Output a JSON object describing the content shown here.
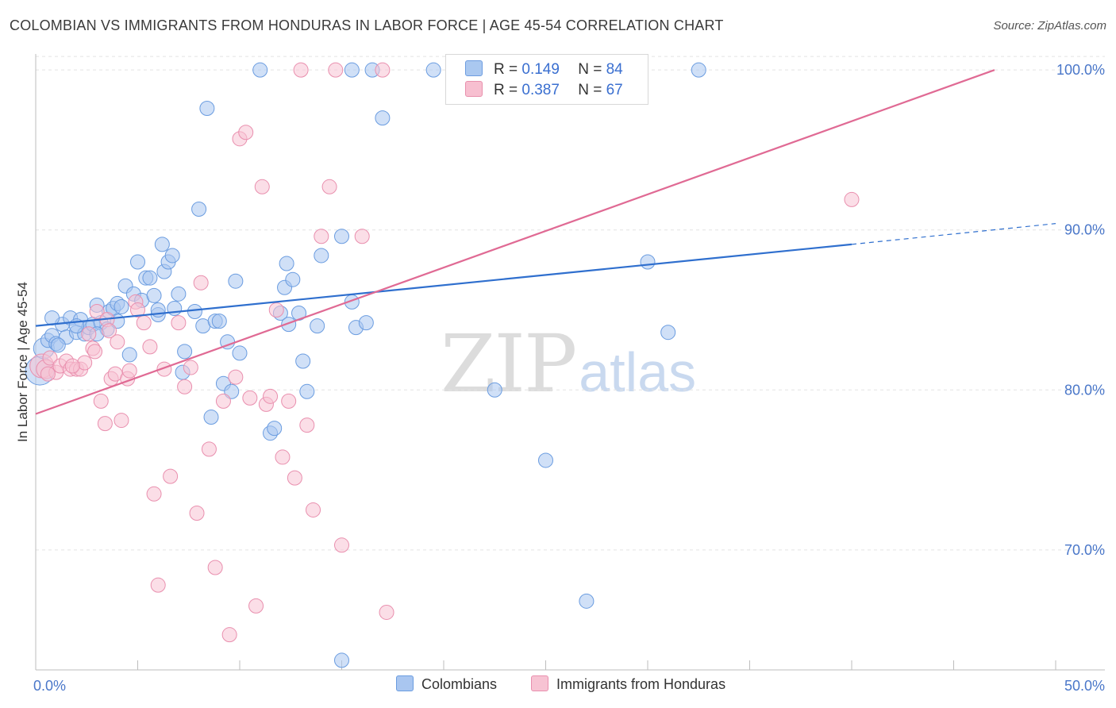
{
  "title": "COLOMBIAN VS IMMIGRANTS FROM HONDURAS IN LABOR FORCE | AGE 45-54 CORRELATION CHART",
  "source": "Source: ZipAtlas.com",
  "watermark": {
    "zip": "ZIP",
    "atlas": "atlas"
  },
  "legend": {
    "r_label": "R =",
    "n_label": "N =",
    "rows": [
      {
        "r": "0.149",
        "n": "84",
        "color": "#aac8f0",
        "border": "#6d9de0"
      },
      {
        "r": "0.387",
        "n": "67",
        "color": "#f7bfd0",
        "border": "#e890ad"
      }
    ]
  },
  "bottom_legend": [
    "Colombians",
    "Immigrants from Honduras"
  ],
  "colors": {
    "blue_fill": "#a9c6f0",
    "blue_stroke": "#6a9ce0",
    "blue_line": "#2f6fce",
    "pink_fill": "#f7c3d3",
    "pink_stroke": "#e98fae",
    "pink_line": "#e06a94"
  },
  "chart_data": {
    "type": "scatter",
    "ylabel": "In Labor Force | Age 45-54",
    "xlabel": "",
    "xlim": [
      0,
      50
    ],
    "ylim": [
      62.5,
      101
    ],
    "x_tick_labels": [
      "0.0%",
      "50.0%"
    ],
    "y_ticks": [
      70,
      80,
      90,
      100
    ],
    "y_tick_labels": [
      "70.0%",
      "80.0%",
      "90.0%",
      "100.0%"
    ],
    "grid": true,
    "series": [
      {
        "name": "Colombians",
        "trend": {
          "x0": 0,
          "y0": 84.0,
          "x1": 40,
          "y1": 89.1,
          "dash_x1": 50,
          "dash_y1": 90.4
        },
        "points": [
          [
            0.2,
            81.2
          ],
          [
            0.4,
            82.6
          ],
          [
            0.6,
            83.1
          ],
          [
            0.8,
            83.4
          ],
          [
            1.0,
            82.9
          ],
          [
            1.3,
            84.1
          ],
          [
            1.5,
            83.3
          ],
          [
            1.7,
            84.5
          ],
          [
            2.0,
            83.6
          ],
          [
            2.2,
            84.4
          ],
          [
            2.4,
            83.5
          ],
          [
            2.6,
            83.9
          ],
          [
            2.8,
            84.1
          ],
          [
            3.0,
            85.3
          ],
          [
            3.2,
            84.2
          ],
          [
            3.5,
            83.8
          ],
          [
            3.6,
            84.9
          ],
          [
            3.8,
            85.1
          ],
          [
            4.0,
            85.4
          ],
          [
            4.2,
            85.2
          ],
          [
            4.4,
            86.5
          ],
          [
            4.6,
            82.2
          ],
          [
            4.8,
            86.0
          ],
          [
            5.0,
            88.0
          ],
          [
            5.2,
            85.6
          ],
          [
            5.4,
            87.0
          ],
          [
            5.6,
            87.0
          ],
          [
            5.8,
            85.9
          ],
          [
            6.0,
            84.7
          ],
          [
            6.2,
            89.1
          ],
          [
            6.3,
            87.4
          ],
          [
            6.5,
            88.0
          ],
          [
            6.7,
            88.4
          ],
          [
            6.8,
            85.1
          ],
          [
            7.0,
            86.0
          ],
          [
            7.2,
            81.1
          ],
          [
            7.3,
            82.4
          ],
          [
            7.8,
            84.9
          ],
          [
            8.0,
            91.3
          ],
          [
            8.2,
            84.0
          ],
          [
            8.4,
            97.6
          ],
          [
            8.6,
            78.3
          ],
          [
            8.8,
            84.3
          ],
          [
            9.0,
            84.3
          ],
          [
            9.2,
            80.4
          ],
          [
            9.4,
            83.0
          ],
          [
            9.6,
            79.9
          ],
          [
            9.8,
            86.8
          ],
          [
            10.0,
            82.3
          ],
          [
            11.0,
            100.0
          ],
          [
            11.5,
            77.3
          ],
          [
            11.7,
            77.6
          ],
          [
            12.0,
            84.8
          ],
          [
            12.2,
            86.4
          ],
          [
            12.3,
            87.9
          ],
          [
            12.4,
            84.1
          ],
          [
            12.6,
            86.9
          ],
          [
            12.9,
            84.8
          ],
          [
            13.1,
            81.8
          ],
          [
            13.3,
            79.9
          ],
          [
            13.8,
            84.0
          ],
          [
            14.0,
            88.4
          ],
          [
            15.0,
            89.6
          ],
          [
            15.5,
            100.0
          ],
          [
            15.5,
            85.5
          ],
          [
            15.7,
            83.9
          ],
          [
            16.2,
            84.2
          ],
          [
            16.5,
            100.0
          ],
          [
            17.0,
            97.0
          ],
          [
            19.5,
            100.0
          ],
          [
            22.0,
            100.0
          ],
          [
            22.5,
            80.0
          ],
          [
            25.0,
            75.6
          ],
          [
            27.0,
            66.8
          ],
          [
            30.0,
            88.0
          ],
          [
            31.0,
            83.6
          ],
          [
            32.5,
            100.0
          ],
          [
            15.0,
            63.1
          ],
          [
            0.8,
            84.5
          ],
          [
            2.0,
            84.0
          ],
          [
            4.0,
            84.3
          ],
          [
            6.0,
            85.0
          ],
          [
            3.0,
            83.5
          ],
          [
            1.1,
            82.8
          ]
        ]
      },
      {
        "name": "Immigrants from Honduras",
        "trend": {
          "x0": 0,
          "y0": 78.5,
          "x1": 47,
          "y1": 100.0
        },
        "points": [
          [
            0.3,
            81.5
          ],
          [
            0.5,
            81.3
          ],
          [
            0.7,
            82.0
          ],
          [
            1.0,
            81.1
          ],
          [
            1.2,
            81.5
          ],
          [
            1.5,
            81.8
          ],
          [
            1.7,
            81.3
          ],
          [
            2.0,
            81.3
          ],
          [
            2.2,
            81.3
          ],
          [
            2.4,
            81.7
          ],
          [
            2.6,
            83.5
          ],
          [
            2.8,
            82.6
          ],
          [
            3.0,
            84.9
          ],
          [
            3.2,
            79.3
          ],
          [
            3.4,
            77.9
          ],
          [
            3.5,
            84.4
          ],
          [
            3.7,
            80.7
          ],
          [
            3.9,
            81.0
          ],
          [
            4.0,
            83.0
          ],
          [
            4.2,
            78.1
          ],
          [
            4.5,
            80.7
          ],
          [
            4.6,
            81.2
          ],
          [
            4.9,
            85.5
          ],
          [
            5.3,
            84.2
          ],
          [
            5.6,
            82.7
          ],
          [
            5.8,
            73.5
          ],
          [
            6.0,
            67.8
          ],
          [
            6.3,
            81.3
          ],
          [
            6.6,
            74.6
          ],
          [
            7.0,
            84.2
          ],
          [
            7.3,
            80.2
          ],
          [
            7.6,
            81.4
          ],
          [
            7.9,
            72.3
          ],
          [
            8.1,
            86.7
          ],
          [
            8.5,
            76.3
          ],
          [
            8.8,
            68.9
          ],
          [
            9.2,
            79.3
          ],
          [
            9.5,
            64.7
          ],
          [
            9.8,
            80.8
          ],
          [
            10.0,
            95.7
          ],
          [
            10.3,
            96.1
          ],
          [
            10.5,
            79.5
          ],
          [
            10.8,
            66.5
          ],
          [
            11.1,
            92.7
          ],
          [
            11.3,
            79.1
          ],
          [
            11.5,
            79.6
          ],
          [
            11.8,
            85.0
          ],
          [
            12.1,
            75.8
          ],
          [
            12.4,
            79.3
          ],
          [
            12.7,
            74.5
          ],
          [
            13.0,
            100.0
          ],
          [
            13.3,
            77.8
          ],
          [
            13.6,
            72.5
          ],
          [
            14.0,
            89.6
          ],
          [
            14.4,
            92.7
          ],
          [
            14.7,
            100.0
          ],
          [
            15.0,
            70.3
          ],
          [
            16.0,
            89.6
          ],
          [
            17.0,
            100.0
          ],
          [
            17.2,
            66.1
          ],
          [
            24.0,
            100.0
          ],
          [
            40.0,
            91.9
          ],
          [
            1.8,
            81.5
          ],
          [
            2.9,
            82.4
          ],
          [
            0.6,
            81.0
          ],
          [
            5.0,
            85.0
          ],
          [
            3.6,
            83.7
          ]
        ]
      }
    ]
  }
}
